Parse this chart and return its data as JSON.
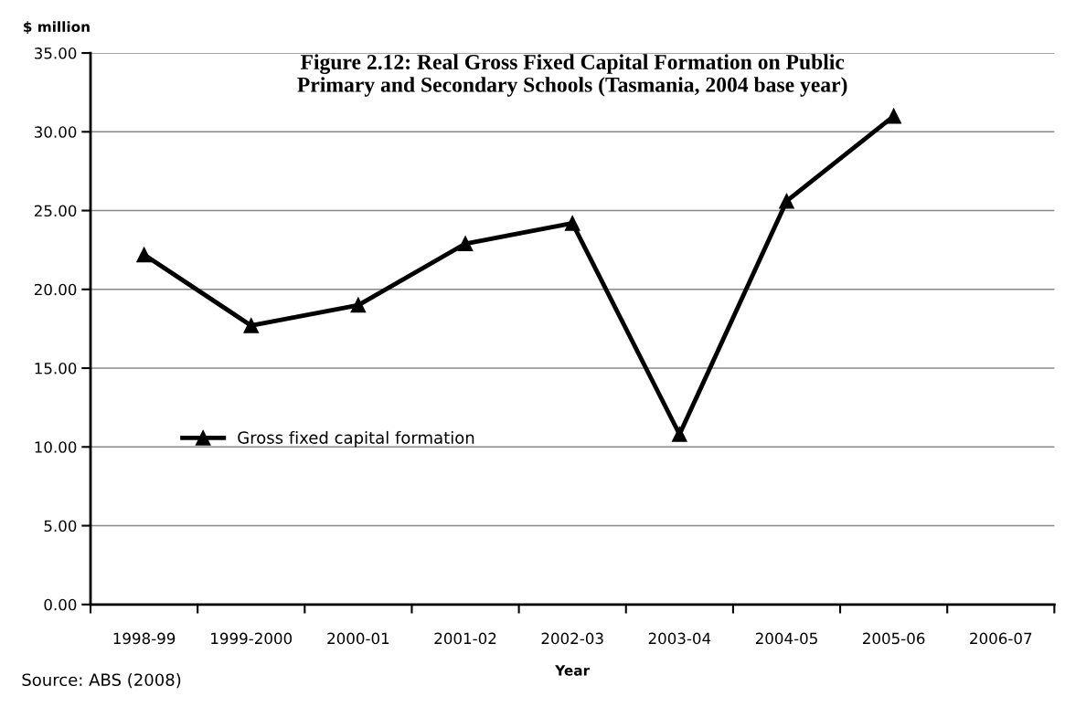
{
  "chart_data": {
    "type": "line",
    "title": "Figure 2.12: Real Gross Fixed Capital Formation on Public\nPrimary and Secondary Schools (Tasmania, 2004 base year)",
    "ylabel": "$ million",
    "xlabel": "Year",
    "annotations": [
      "Source: ABS (2008)"
    ],
    "categories": [
      "1998-99",
      "1999-2000",
      "2000-01",
      "2001-02",
      "2002-03",
      "2003-04",
      "2004-05",
      "2005-06",
      "2006-07"
    ],
    "series": [
      {
        "name": "Gross fixed capital formation",
        "color": "#000000",
        "values": [
          22.2,
          17.7,
          19.0,
          22.9,
          24.2,
          10.8,
          25.6,
          31.0,
          null
        ]
      }
    ],
    "ylim": [
      0,
      35
    ],
    "yticks": [
      {
        "value": 0,
        "label": "0.00"
      },
      {
        "value": 5,
        "label": "5.00"
      },
      {
        "value": 10,
        "label": "10.00"
      },
      {
        "value": 15,
        "label": "15.00"
      },
      {
        "value": 20,
        "label": "20.00"
      },
      {
        "value": 25,
        "label": "25.00"
      },
      {
        "value": 30,
        "label": "30.00"
      },
      {
        "value": 35,
        "label": "35.00"
      }
    ],
    "grid": "y",
    "legend": "center left",
    "marker": "triangle",
    "line_style": "solid"
  }
}
